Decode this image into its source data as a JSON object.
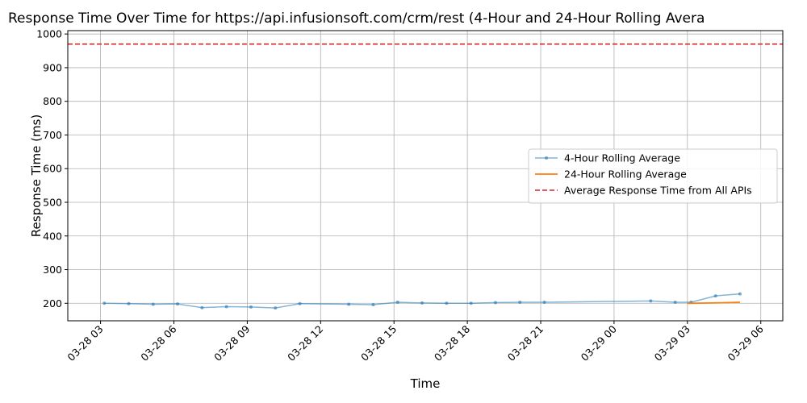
{
  "chart_data": {
    "type": "line",
    "title": "Response Time Over Time for https://api.infusionsoft.com/crm/rest (4-Hour and 24-Hour Rolling Avera",
    "xlabel": "Time",
    "ylabel": "Response Time (ms)",
    "x_unit": "hours since 03-28 00:00",
    "xlim": [
      1.66,
      30.9
    ],
    "ylim": [
      148,
      1010
    ],
    "x_ticks": [
      {
        "value": 3,
        "label": "03-28 03"
      },
      {
        "value": 6,
        "label": "03-28 06"
      },
      {
        "value": 9,
        "label": "03-28 09"
      },
      {
        "value": 12,
        "label": "03-28 12"
      },
      {
        "value": 15,
        "label": "03-28 15"
      },
      {
        "value": 18,
        "label": "03-28 18"
      },
      {
        "value": 21,
        "label": "03-28 21"
      },
      {
        "value": 24,
        "label": "03-29 00"
      },
      {
        "value": 27,
        "label": "03-29 03"
      },
      {
        "value": 30,
        "label": "03-29 06"
      }
    ],
    "y_ticks": [
      200,
      300,
      400,
      500,
      600,
      700,
      800,
      900,
      1000
    ],
    "grid": true,
    "legend_position": "center-right",
    "series": [
      {
        "name": "4-Hour Rolling Average",
        "color": "#1f77b4",
        "style": "line-with-markers",
        "x": [
          3.15,
          4.15,
          5.15,
          6.15,
          7.15,
          8.15,
          9.15,
          10.15,
          11.15,
          13.15,
          14.15,
          15.15,
          16.15,
          17.15,
          18.15,
          19.15,
          20.15,
          21.15,
          25.5,
          26.5,
          27.15,
          28.15,
          29.15
        ],
        "values": [
          200,
          199,
          197,
          198,
          187,
          190,
          189,
          186,
          199,
          197,
          196,
          203,
          201,
          200,
          200,
          202,
          203,
          203,
          207,
          203,
          203,
          222,
          228
        ]
      },
      {
        "name": "24-Hour Rolling Average",
        "color": "#ff7f0e",
        "style": "line",
        "x": [
          27.0,
          28.0,
          29.15
        ],
        "values": [
          200,
          201,
          203
        ]
      },
      {
        "name": "Average Response Time from All APIs",
        "color": "#d62728",
        "style": "dashed-hline",
        "y": 970
      }
    ]
  }
}
